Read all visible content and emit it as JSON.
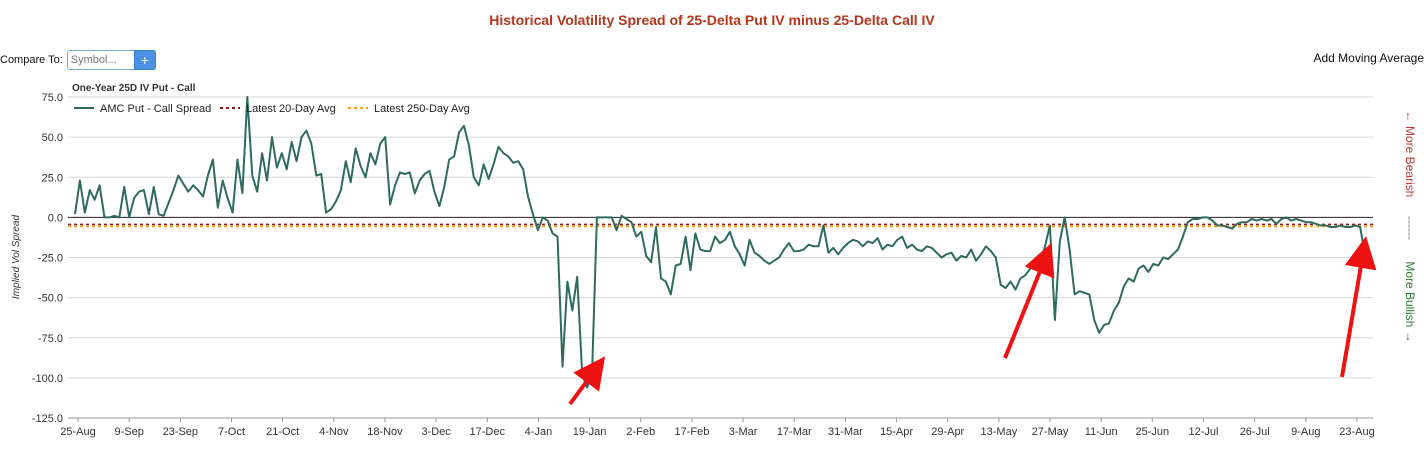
{
  "header": {
    "title": "Historical Volatility Spread of 25-Delta Put IV minus 25-Delta Call IV",
    "compare_label": "Compare To:",
    "symbol_placeholder": "Symbol...",
    "add_button": "+",
    "moving_average_label": "Add Moving Average"
  },
  "colors": {
    "title": "#b5351c",
    "series": "#2e6b5e",
    "avg20": "#8b1a1a",
    "avg250": "#f0a020",
    "bearish": "#c0392b",
    "bullish": "#2e7d32"
  },
  "chart_data": {
    "type": "line",
    "subtitle": "One-Year 25D IV Put - Call",
    "ylabel": "Implied Vol Spread",
    "ylim": [
      -125,
      75
    ],
    "yticks": [
      75,
      50,
      25,
      0,
      -25,
      -50,
      -75,
      -100,
      -125
    ],
    "ytick_labels": [
      "75.0",
      "50.0",
      "25.0",
      "0.0",
      "-25.0",
      "-50.0",
      "-75.0",
      "-100.0",
      "-125.0"
    ],
    "xtick_labels": [
      "25-Aug",
      "9-Sep",
      "23-Sep",
      "7-Oct",
      "21-Oct",
      "4-Nov",
      "18-Nov",
      "3-Dec",
      "17-Dec",
      "4-Jan",
      "19-Jan",
      "2-Feb",
      "17-Feb",
      "3-Mar",
      "17-Mar",
      "31-Mar",
      "15-Apr",
      "29-Apr",
      "13-May",
      "27-May",
      "11-Jun",
      "25-Jun",
      "12-Jul",
      "26-Jul",
      "9-Aug",
      "23-Aug"
    ],
    "grid": true,
    "legend": [
      {
        "name": "AMC Put - Call Spread",
        "style": "solid"
      },
      {
        "name": "Latest 20-Day Avg",
        "style": "dotted"
      },
      {
        "name": "Latest 250-Day Avg",
        "style": "dotted"
      }
    ],
    "reference_lines": [
      {
        "name": "Latest 20-Day Avg",
        "value": -5
      },
      {
        "name": "Latest 250-Day Avg",
        "value": -5
      }
    ],
    "side_labels": {
      "bearish": "← More Bearish",
      "bullish": "More Bullish →",
      "separator": "------"
    },
    "series": [
      {
        "name": "AMC Put - Call Spread",
        "values": [
          2,
          23,
          3,
          17,
          11,
          20,
          0,
          0,
          1,
          0,
          19,
          0,
          12,
          16,
          17,
          2,
          19,
          2,
          1,
          9,
          17,
          26,
          21,
          16,
          20,
          17,
          13,
          26,
          36,
          6,
          23,
          12,
          3,
          36,
          15,
          75,
          26,
          16,
          40,
          23,
          50,
          31,
          40,
          30,
          47,
          35,
          50,
          54,
          46,
          26,
          27,
          3,
          5,
          10,
          17,
          35,
          22,
          43,
          32,
          25,
          40,
          33,
          46,
          50,
          8,
          20,
          28,
          27,
          28,
          15,
          23,
          27,
          29,
          16,
          7,
          19,
          36,
          38,
          53,
          57,
          45,
          25,
          20,
          33,
          24,
          33,
          44,
          40,
          38,
          34,
          35,
          30,
          13,
          2,
          -8,
          0,
          -2,
          -10,
          -12,
          -93,
          -40,
          -58,
          -37,
          -98,
          -106,
          -98,
          0,
          0,
          0,
          0,
          -8,
          1,
          -1,
          -3,
          -12,
          -9,
          -24,
          -28,
          -6,
          -38,
          -40,
          -48,
          -30,
          -29,
          -12,
          -33,
          -10,
          -20,
          -21,
          -21,
          -12,
          -16,
          -14,
          -9,
          -18,
          -23,
          -30,
          -14,
          -22,
          -24,
          -27,
          -29,
          -27,
          -25,
          -20,
          -16,
          -21,
          -21,
          -20,
          -17,
          -18,
          -18,
          -5,
          -22,
          -19,
          -23,
          -19,
          -16,
          -14,
          -15,
          -18,
          -15,
          -16,
          -13,
          -20,
          -17,
          -18,
          -14,
          -12,
          -19,
          -17,
          -20,
          -21,
          -18,
          -19,
          -22,
          -25,
          -23,
          -22,
          -27,
          -24,
          -25,
          -20,
          -27,
          -23,
          -18,
          -21,
          -25,
          -42,
          -44,
          -40,
          -45,
          -38,
          -36,
          -32,
          -30,
          -28,
          -18,
          -5,
          -64,
          -15,
          0,
          -20,
          -48,
          -46,
          -47,
          -48,
          -64,
          -72,
          -67,
          -66,
          -58,
          -53,
          -43,
          -38,
          -40,
          -32,
          -30,
          -34,
          -29,
          -30,
          -25,
          -26,
          -23,
          -20,
          -12,
          -3,
          -1,
          -1,
          0,
          0,
          -2,
          -5,
          -5,
          -6,
          -7,
          -4,
          -3,
          -3,
          -1,
          -2,
          -1,
          -2,
          -1,
          -4,
          -1,
          0,
          -2,
          -1,
          -2,
          -3,
          -3,
          -4,
          -5,
          -5,
          -6,
          -6,
          -5,
          -6,
          -6,
          -5,
          -6,
          -24,
          -30
        ]
      }
    ]
  }
}
